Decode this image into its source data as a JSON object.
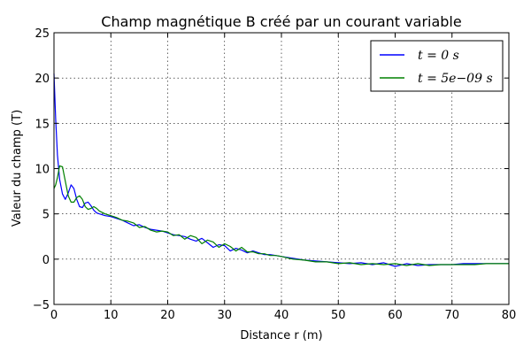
{
  "chart_data": {
    "type": "line",
    "title": "Champ magnétique B créé par un courant variable",
    "xlabel": "Distance r (m)",
    "ylabel": "Valeur du champ (T)",
    "xlim": [
      0,
      80
    ],
    "ylim": [
      -5,
      25
    ],
    "xticks": [
      "0",
      "10",
      "20",
      "30",
      "40",
      "50",
      "60",
      "70",
      "80"
    ],
    "yticks": [
      "−5",
      "0",
      "5",
      "10",
      "15",
      "20",
      "25"
    ],
    "grid": true,
    "legend_position": "top-right",
    "series": [
      {
        "name": "t = 0 s",
        "color": "#0000ff",
        "x": [
          0,
          0.3,
          0.6,
          1,
          1.5,
          2,
          2.5,
          3,
          3.5,
          4,
          4.5,
          5,
          5.5,
          6,
          6.5,
          7,
          7.5,
          8,
          9,
          10,
          11,
          12,
          13,
          14,
          15,
          16,
          17,
          18,
          19,
          20,
          21,
          22,
          23,
          24,
          25,
          26,
          27,
          28,
          29,
          30,
          31,
          32,
          33,
          34,
          35,
          36,
          37,
          38,
          39,
          40,
          42,
          44,
          46,
          48,
          50,
          52,
          54,
          56,
          58,
          60,
          62,
          64,
          66,
          68,
          70,
          72,
          74,
          76,
          78,
          80
        ],
        "y": [
          20.5,
          15.5,
          11.5,
          8.8,
          7.2,
          6.6,
          7.3,
          8.2,
          7.8,
          6.6,
          5.8,
          5.7,
          6.2,
          6.3,
          5.9,
          5.4,
          5.1,
          5.0,
          4.8,
          4.7,
          4.5,
          4.3,
          4.0,
          3.7,
          3.8,
          3.5,
          3.3,
          3.2,
          3.1,
          2.9,
          2.7,
          2.6,
          2.5,
          2.2,
          2.0,
          2.3,
          1.8,
          1.3,
          1.6,
          1.5,
          0.9,
          1.2,
          1.0,
          0.7,
          0.9,
          0.7,
          0.5,
          0.5,
          0.4,
          0.3,
          0.1,
          -0.1,
          -0.2,
          -0.3,
          -0.4,
          -0.5,
          -0.4,
          -0.6,
          -0.4,
          -0.8,
          -0.5,
          -0.7,
          -0.6,
          -0.6,
          -0.6,
          -0.5,
          -0.5,
          -0.5,
          -0.5,
          -0.5
        ]
      },
      {
        "name": "t = 5e−09 s",
        "color": "#008000",
        "x": [
          0,
          0.3,
          0.6,
          1,
          1.5,
          2,
          2.5,
          3,
          3.5,
          4,
          4.5,
          5,
          5.5,
          6,
          6.5,
          7,
          7.5,
          8,
          9,
          10,
          11,
          12,
          13,
          14,
          15,
          16,
          17,
          18,
          19,
          20,
          21,
          22,
          23,
          24,
          25,
          26,
          27,
          28,
          29,
          30,
          31,
          32,
          33,
          34,
          35,
          36,
          37,
          38,
          39,
          40,
          42,
          44,
          46,
          48,
          50,
          52,
          54,
          56,
          58,
          60,
          62,
          64,
          66,
          68,
          70,
          72,
          74,
          76,
          78,
          80
        ],
        "y": [
          7.8,
          8.2,
          9.0,
          10.3,
          10.2,
          8.6,
          7.0,
          6.3,
          6.3,
          6.8,
          7.0,
          6.6,
          5.8,
          5.5,
          5.6,
          5.8,
          5.6,
          5.3,
          5.0,
          4.8,
          4.6,
          4.3,
          4.2,
          4.0,
          3.5,
          3.6,
          3.2,
          3.0,
          3.1,
          3.0,
          2.6,
          2.7,
          2.2,
          2.6,
          2.4,
          1.7,
          2.1,
          1.9,
          1.3,
          1.7,
          1.4,
          0.9,
          1.3,
          0.8,
          0.8,
          0.6,
          0.6,
          0.4,
          0.4,
          0.3,
          0.0,
          -0.1,
          -0.3,
          -0.3,
          -0.5,
          -0.4,
          -0.6,
          -0.5,
          -0.6,
          -0.5,
          -0.7,
          -0.5,
          -0.7,
          -0.6,
          -0.6,
          -0.6,
          -0.6,
          -0.5,
          -0.5,
          -0.5
        ]
      }
    ]
  }
}
